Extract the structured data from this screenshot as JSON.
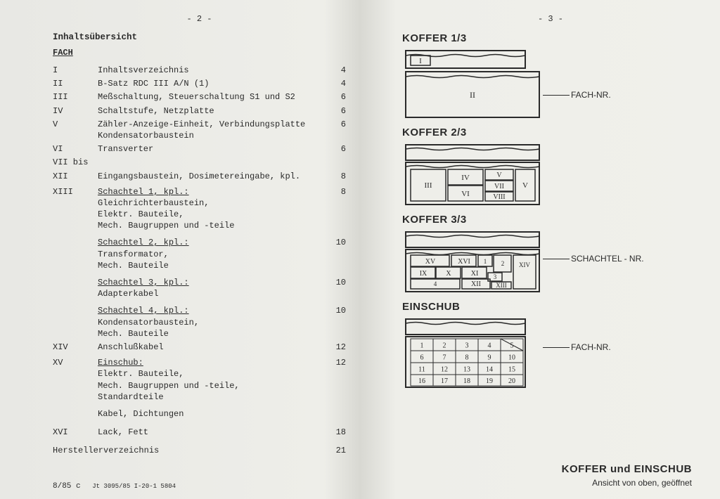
{
  "left": {
    "pagenum": "- 2 -",
    "heading": "Inhaltsübersicht",
    "fach": "FACH",
    "rows": [
      {
        "id": "I",
        "desc": "Inhaltsverzeichnis",
        "pg": "4"
      },
      {
        "id": "II",
        "desc": "B-Satz RDC III A/N (1)",
        "pg": "4"
      },
      {
        "id": "III",
        "desc": "Meßschaltung, Steuerschaltung S1 und S2",
        "pg": "6"
      },
      {
        "id": "IV",
        "desc": "Schaltstufe, Netzplatte",
        "pg": "6"
      },
      {
        "id": "V",
        "desc": "Zähler-Anzeige-Einheit, Verbindungsplatte Kondensatorbaustein",
        "pg": "6"
      },
      {
        "id": "VI",
        "desc": "Transverter",
        "pg": "6"
      },
      {
        "id": "VII bis",
        "desc": "",
        "pg": ""
      },
      {
        "id": "XII",
        "desc": "Eingangsbaustein, Dosimetereingabe, kpl.",
        "pg": "8"
      },
      {
        "id": "XIII",
        "desc": "",
        "sub": "Schachtel 1, kpl.:",
        "subu": true,
        "desc2": "Gleichrichterbaustein,\nElektr. Bauteile,\nMech. Baugruppen und -teile",
        "pg": "8"
      },
      {
        "id": "",
        "desc": "",
        "sub": "Schachtel 2, kpl.:",
        "subu": true,
        "desc2": "Transformator,\nMech. Bauteile",
        "pg": "10"
      },
      {
        "id": "",
        "desc": "",
        "sub": "Schachtel 3, kpl.:",
        "subu": true,
        "desc2": "Adapterkabel",
        "pg": "10"
      },
      {
        "id": "",
        "desc": "",
        "sub": "Schachtel 4, kpl.:",
        "subu": true,
        "desc2": "Kondensatorbaustein,\nMech. Bauteile",
        "pg": "10"
      },
      {
        "id": "XIV",
        "desc": "Anschlußkabel",
        "pg": "12"
      },
      {
        "id": "XV",
        "desc": "",
        "sub": "Einschub:",
        "subu": true,
        "desc2": "Elektr. Bauteile,\nMech. Baugruppen und -teile,\nStandardteile",
        "pg": "12"
      },
      {
        "id": "",
        "desc": "Kabel, Dichtungen",
        "pg": ""
      },
      {
        "id": "XVI",
        "desc": "Lack, Fett",
        "pg": "18"
      },
      {
        "id": "",
        "desc": "Herstellerverzeichnis",
        "pg": "21",
        "outdent": true
      }
    ],
    "footer_main": "8/85 c",
    "footer_small": "Jt 3095/85  I-20-1  5804"
  },
  "right": {
    "pagenum": "- 3 -",
    "k1": {
      "title": "KOFFER 1/3",
      "callout": "FACH-NR.",
      "labels": [
        "I",
        "II"
      ]
    },
    "k2": {
      "title": "KOFFER 2/3",
      "labels": [
        "III",
        "IV",
        "V",
        "VI",
        "VII",
        "VIII"
      ]
    },
    "k3": {
      "title": "KOFFER 3/3",
      "callout": "SCHACHTEL - NR.",
      "labels": [
        "XV",
        "XVI",
        "1",
        "2",
        "IX",
        "X",
        "XI",
        "3",
        "XIV",
        "4",
        "XII",
        "XIII"
      ]
    },
    "es": {
      "title": "EINSCHUB",
      "callout": "FACH-NR."
    },
    "footer_big": "KOFFER und EINSCHUB",
    "footer_small": "Ansicht von oben, geöffnet",
    "stroke": "#2a2a2a",
    "fill": "none"
  }
}
